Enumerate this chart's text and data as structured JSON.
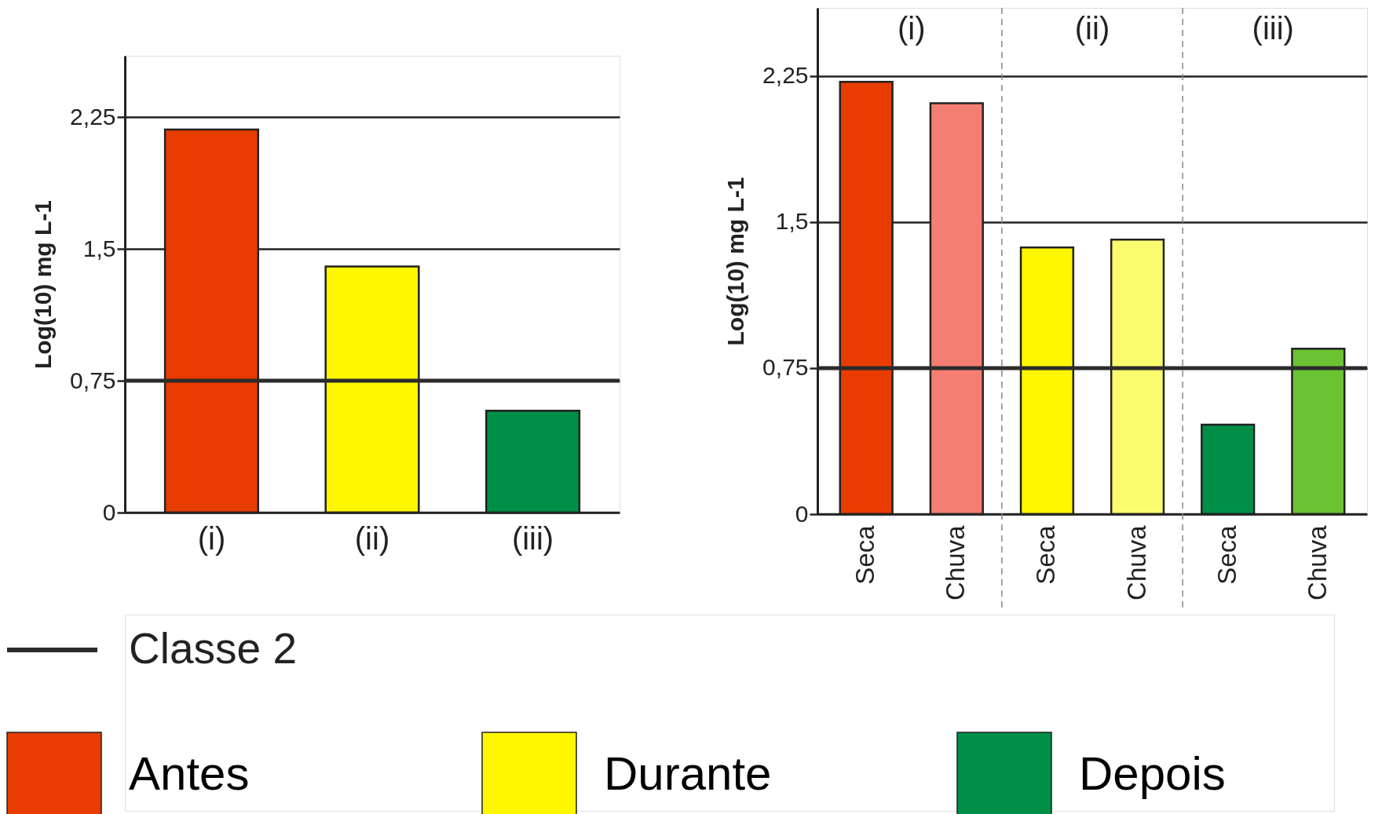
{
  "chart_data": [
    {
      "type": "bar",
      "ylabel": "Log(10) mg L-1",
      "categories": [
        "(i)",
        "(ii)",
        "(iii)"
      ],
      "series": [
        {
          "name": "Antes",
          "color": "#e83c00",
          "values": [
            2.18,
            null,
            null
          ]
        },
        {
          "name": "Durante",
          "color": "#fff700",
          "values": [
            null,
            1.4,
            null
          ]
        },
        {
          "name": "Depois",
          "color": "#008f47",
          "values": [
            null,
            null,
            0.58
          ]
        }
      ],
      "ylim": [
        0,
        2.6
      ],
      "yticks": [
        {
          "value": 0,
          "label": "0"
        },
        {
          "value": 0.75,
          "label": "0,75"
        },
        {
          "value": 1.5,
          "label": "1,5"
        },
        {
          "value": 2.25,
          "label": "2,25"
        }
      ],
      "grid": "y",
      "legend": "bottom",
      "ref_lines": [
        {
          "axis": "y",
          "value": 0.75,
          "label": "Classe 2",
          "color": "#2b2b2b"
        }
      ]
    },
    {
      "type": "bar",
      "ylabel": "Log(10) mg L-1",
      "categories": [
        "Seca",
        "Chuva",
        "Seca",
        "Chuva",
        "Seca",
        "Chuva"
      ],
      "values": [
        2.22,
        2.11,
        1.37,
        1.41,
        0.46,
        0.85
      ],
      "colors": [
        "#e83c00",
        "#f47e72",
        "#fff700",
        "#fbfb6e",
        "#008f47",
        "#6bc232"
      ],
      "ylim": [
        0,
        2.6
      ],
      "yticks": [
        {
          "value": 0,
          "label": "0"
        },
        {
          "value": 0.75,
          "label": "0,75"
        },
        {
          "value": 1.5,
          "label": "1,5"
        },
        {
          "value": 2.25,
          "label": "2,25"
        }
      ],
      "grid": "y",
      "annotations": [
        "(i)",
        "(ii)",
        "(iii)"
      ],
      "ref_lines": [
        {
          "axis": "y",
          "value": 0.75,
          "color": "#2b2b2b"
        }
      ]
    }
  ]
}
